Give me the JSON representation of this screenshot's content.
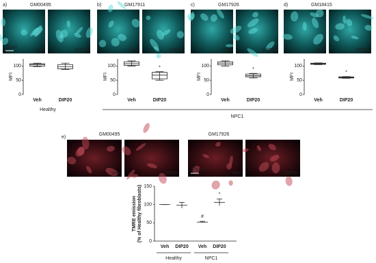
{
  "top_panels": [
    {
      "letter": "a)",
      "cell_line": "GM00495",
      "images": [
        "Veh",
        "DIP20"
      ],
      "scale_bar": "20um",
      "chart": {
        "type": "box",
        "y_label": "MFI",
        "categories": [
          "Veh",
          "DIP20"
        ],
        "boxes": [
          [
            98,
            100,
            105,
            108,
            110
          ],
          [
            88,
            90,
            97,
            105,
            110
          ]
        ],
        "ylim": [
          0,
          125
        ],
        "yticks": [
          0,
          50,
          100
        ]
      }
    },
    {
      "letter": "b)",
      "cell_line": "GM17911",
      "images": [
        "Veh",
        "DIP20"
      ],
      "chart": {
        "type": "box",
        "y_label": "MFI",
        "categories": [
          "Veh",
          "DIP20"
        ],
        "boxes": [
          [
            100,
            102,
            108,
            115,
            118
          ],
          [
            50,
            55,
            68,
            78,
            80
          ]
        ],
        "annotations": [
          null,
          "*"
        ],
        "ylim": [
          0,
          125
        ],
        "yticks": [
          0,
          50,
          100
        ]
      }
    },
    {
      "letter": "c)",
      "cell_line": "GM17926",
      "images": [
        "Veh",
        "DIP20"
      ],
      "chart": {
        "type": "box",
        "y_label": "MFI",
        "categories": [
          "Veh",
          "DIP20"
        ],
        "boxes": [
          [
            100,
            104,
            110,
            115,
            118
          ],
          [
            58,
            62,
            66,
            72,
            74
          ]
        ],
        "annotations": [
          null,
          "*"
        ],
        "ylim": [
          0,
          125
        ],
        "yticks": [
          0,
          50,
          100
        ]
      }
    },
    {
      "letter": "d)",
      "cell_line": "GM18415",
      "images": [
        "Veh",
        "DIP20"
      ],
      "chart": {
        "type": "box",
        "y_label": "MFI",
        "categories": [
          "Veh",
          "DIP20"
        ],
        "boxes": [
          [
            105,
            106,
            108,
            110,
            111
          ],
          [
            57,
            58,
            60,
            62,
            63
          ]
        ],
        "annotations": [
          null,
          "*"
        ],
        "ylim": [
          0,
          125
        ],
        "yticks": [
          0,
          50,
          100
        ]
      }
    }
  ],
  "top_groups": [
    "Healthy",
    "NPC1"
  ],
  "panel_e": {
    "letter": "e)",
    "cell_lines": [
      "GM00495",
      "GM17926"
    ],
    "images": [
      "Veh",
      "DIP20",
      "Veh",
      "DIP20"
    ],
    "scale_bar": "20µm",
    "chart": {
      "type": "mean-error",
      "y_label": [
        "TMRE emission",
        "(% of Healthy fibroblasts)"
      ],
      "categories": [
        "Veh",
        "DIP20",
        "Veh",
        "DIP20"
      ],
      "groups": [
        "Healthy",
        "NPC1"
      ],
      "values": [
        100,
        98,
        52,
        106
      ],
      "errors": [
        0,
        8,
        2,
        9
      ],
      "annotations": [
        null,
        null,
        "#",
        "*"
      ],
      "ylim": [
        0,
        150
      ],
      "yticks": [
        0,
        50,
        100,
        150
      ]
    }
  }
}
